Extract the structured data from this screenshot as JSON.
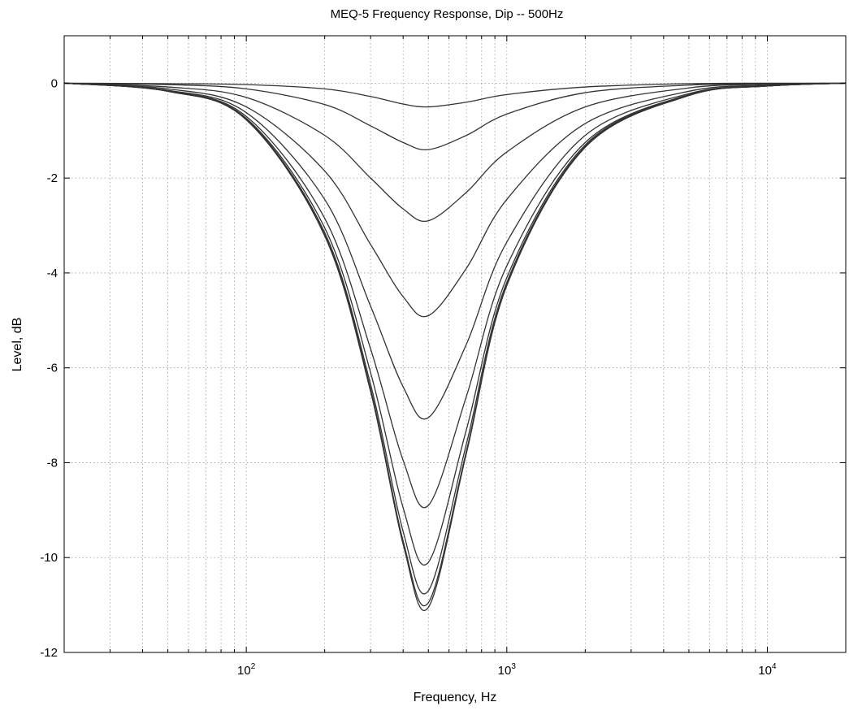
{
  "chart_data": {
    "type": "line",
    "title": "MEQ-5 Frequency Response, Dip -- 500Hz",
    "xlabel": "Frequency, Hz",
    "ylabel": "Level, dB",
    "x_scale": "log",
    "xlim": [
      20,
      20000
    ],
    "ylim": [
      -12,
      1
    ],
    "grid": true,
    "x_ticks": [
      {
        "value": 100,
        "base": "10",
        "exp": "2"
      },
      {
        "value": 1000,
        "base": "10",
        "exp": "3"
      },
      {
        "value": 10000,
        "base": "10",
        "exp": "4"
      }
    ],
    "y_ticks": [
      {
        "value": 0,
        "label": "0"
      },
      {
        "value": -2,
        "label": "-2"
      },
      {
        "value": -4,
        "label": "-4"
      },
      {
        "value": -6,
        "label": "-6"
      },
      {
        "value": -8,
        "label": "-8"
      },
      {
        "value": -10,
        "label": "-10"
      },
      {
        "value": -12,
        "label": "-12"
      }
    ],
    "center_frequency": 500,
    "series": [
      {
        "min_level": -0.5,
        "x": [
          20,
          50,
          100,
          200,
          300,
          400,
          500,
          700,
          1000,
          2000,
          5000,
          10000,
          20000
        ],
        "y": [
          0,
          -0.01,
          -0.03,
          -0.12,
          -0.28,
          -0.44,
          -0.5,
          -0.4,
          -0.24,
          -0.08,
          -0.01,
          0,
          0
        ]
      },
      {
        "min_level": -1.4,
        "x": [
          20,
          50,
          100,
          200,
          300,
          400,
          500,
          700,
          1000,
          2000,
          5000,
          10000,
          20000
        ],
        "y": [
          0,
          -0.03,
          -0.12,
          -0.45,
          -0.9,
          -1.25,
          -1.4,
          -1.1,
          -0.65,
          -0.2,
          -0.04,
          -0.01,
          0
        ]
      },
      {
        "min_level": -2.9,
        "x": [
          20,
          50,
          100,
          200,
          300,
          400,
          500,
          700,
          1000,
          2000,
          5000,
          10000,
          20000
        ],
        "y": [
          0,
          -0.08,
          -0.3,
          -1.1,
          -2.0,
          -2.65,
          -2.9,
          -2.3,
          -1.45,
          -0.5,
          -0.1,
          -0.02,
          0
        ]
      },
      {
        "min_level": -4.9,
        "x": [
          20,
          50,
          100,
          200,
          300,
          400,
          500,
          700,
          1000,
          2000,
          5000,
          10000,
          20000
        ],
        "y": [
          0,
          -0.12,
          -0.5,
          -1.85,
          -3.4,
          -4.5,
          -4.9,
          -3.9,
          -2.45,
          -0.85,
          -0.17,
          -0.04,
          0
        ]
      },
      {
        "min_level": -7.05,
        "x": [
          20,
          50,
          100,
          200,
          300,
          400,
          500,
          700,
          1000,
          2000,
          5000,
          10000,
          20000
        ],
        "y": [
          0,
          -0.15,
          -0.62,
          -2.45,
          -4.7,
          -6.4,
          -7.05,
          -5.5,
          -3.35,
          -1.1,
          -0.22,
          -0.05,
          0
        ]
      },
      {
        "min_level": -8.9,
        "x": [
          20,
          50,
          100,
          200,
          300,
          400,
          500,
          700,
          1000,
          2000,
          5000,
          10000,
          20000
        ],
        "y": [
          0,
          -0.16,
          -0.7,
          -2.85,
          -5.6,
          -7.95,
          -8.9,
          -6.6,
          -3.85,
          -1.25,
          -0.24,
          -0.06,
          0
        ]
      },
      {
        "min_level": -10.1,
        "x": [
          20,
          50,
          100,
          200,
          300,
          400,
          500,
          700,
          1000,
          2000,
          5000,
          10000,
          20000
        ],
        "y": [
          0,
          -0.17,
          -0.74,
          -3.05,
          -6.1,
          -8.95,
          -10.1,
          -7.3,
          -4.1,
          -1.3,
          -0.25,
          -0.06,
          0
        ]
      },
      {
        "min_level": -10.7,
        "x": [
          20,
          50,
          100,
          200,
          300,
          400,
          500,
          700,
          1000,
          2000,
          5000,
          10000,
          20000
        ],
        "y": [
          0,
          -0.17,
          -0.76,
          -3.15,
          -6.35,
          -9.45,
          -10.7,
          -7.6,
          -4.2,
          -1.33,
          -0.26,
          -0.06,
          0
        ]
      },
      {
        "min_level": -10.95,
        "x": [
          20,
          50,
          100,
          200,
          300,
          400,
          500,
          700,
          1000,
          2000,
          5000,
          10000,
          20000
        ],
        "y": [
          0,
          -0.17,
          -0.77,
          -3.2,
          -6.45,
          -9.65,
          -10.95,
          -7.75,
          -4.25,
          -1.35,
          -0.26,
          -0.06,
          0
        ]
      },
      {
        "min_level": -11.05,
        "x": [
          20,
          50,
          100,
          200,
          300,
          400,
          500,
          700,
          1000,
          2000,
          5000,
          10000,
          20000
        ],
        "y": [
          0,
          -0.17,
          -0.77,
          -3.22,
          -6.5,
          -9.72,
          -11.05,
          -7.8,
          -4.27,
          -1.35,
          -0.26,
          -0.06,
          0
        ]
      }
    ]
  }
}
